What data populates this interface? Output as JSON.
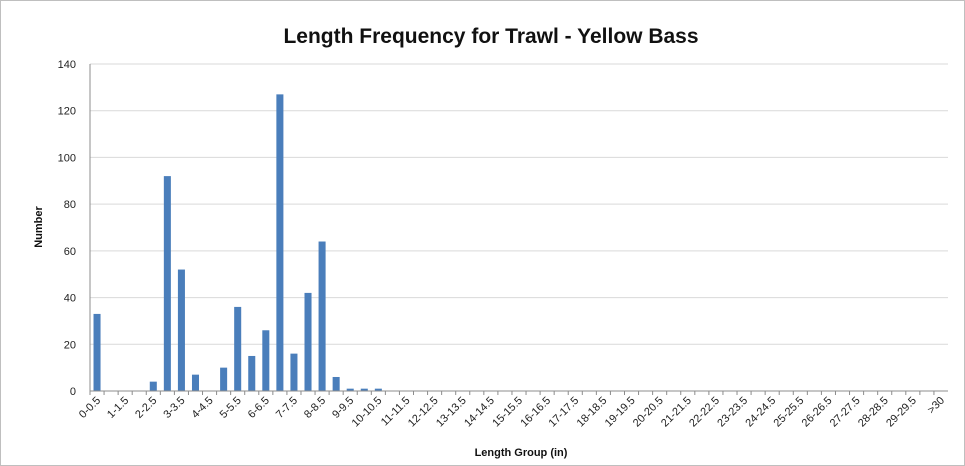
{
  "chart_data": {
    "type": "bar",
    "title": "Length Frequency for Trawl - Yellow Bass",
    "xlabel": "Length Group (in)",
    "ylabel": "Number",
    "ylim": [
      0,
      140
    ],
    "yticks": [
      "0",
      "20",
      "40",
      "60",
      "80",
      "100",
      "120",
      "140"
    ],
    "grid": true,
    "legend": "none",
    "bar_color": "#4a7ebb",
    "categories": [
      "0-0.5",
      "0.5-1",
      "1-1.5",
      "1.5-2",
      "2-2.5",
      "2.5-3",
      "3-3.5",
      "3.5-4",
      "4-4.5",
      "4.5-5",
      "5-5.5",
      "5.5-6",
      "6-6.5",
      "6.5-7",
      "7-7.5",
      "7.5-8",
      "8-8.5",
      "8.5-9",
      "9-9.5",
      "9.5-10",
      "10-10.5",
      "10.5-11",
      "11-11.5",
      "11.5-12",
      "12-12.5",
      "12.5-13",
      "13-13.5",
      "13.5-14",
      "14-14.5",
      "14.5-15",
      "15-15.5",
      "15.5-16",
      "16-16.5",
      "16.5-17",
      "17-17.5",
      "17.5-18",
      "18-18.5",
      "18.5-19",
      "19-19.5",
      "19.5-20",
      "20-20.5",
      "20.5-21",
      "21-21.5",
      "21.5-22",
      "22-22.5",
      "22.5-23",
      "23-23.5",
      "23.5-24",
      "24-24.5",
      "24.5-25",
      "25-25.5",
      "25.5-26",
      "26-26.5",
      "26.5-27",
      "27-27.5",
      "27.5-28",
      "28-28.5",
      "28.5-29",
      "29-29.5",
      "29.5-30",
      ">30"
    ],
    "values": [
      33,
      0,
      0,
      0,
      4,
      92,
      52,
      7,
      0,
      10,
      36,
      15,
      26,
      127,
      16,
      42,
      64,
      6,
      1,
      1,
      1,
      0,
      0,
      0,
      0,
      0,
      0,
      0,
      0,
      0,
      0,
      0,
      0,
      0,
      0,
      0,
      0,
      0,
      0,
      0,
      0,
      0,
      0,
      0,
      0,
      0,
      0,
      0,
      0,
      0,
      0,
      0,
      0,
      0,
      0,
      0,
      0,
      0,
      0,
      0,
      0
    ],
    "label_every": 2
  }
}
